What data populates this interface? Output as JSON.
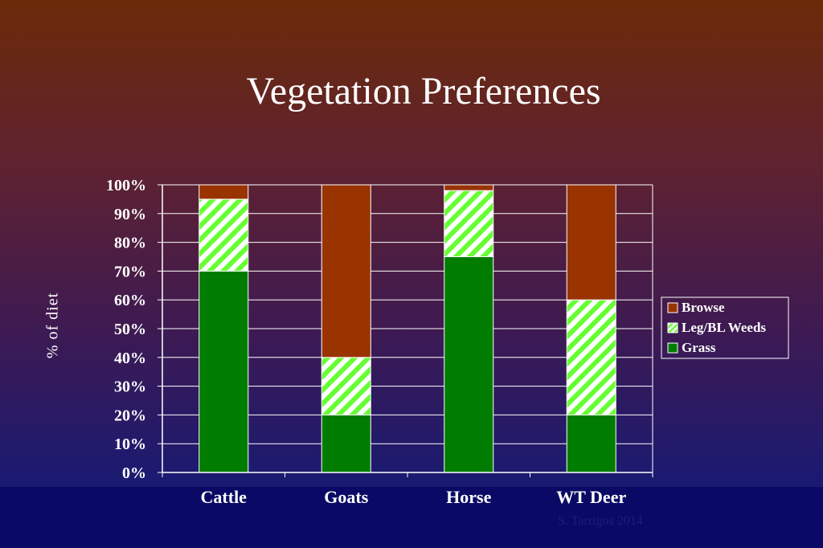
{
  "slide": {
    "title": "Vegetation Preferences",
    "footer": "S. Tarrigos 2014"
  },
  "colors": {
    "grass": "#007d00",
    "weeds_stripe": "#66ff33",
    "weeds_bg": "#ffffff",
    "browse": "#993300",
    "axis": "#ffffff"
  },
  "chart_data": {
    "type": "bar",
    "stacked": true,
    "percent": true,
    "categories": [
      "Cattle",
      "Goats",
      "Horse",
      "WT Deer"
    ],
    "series": [
      {
        "name": "Grass",
        "values": [
          70,
          20,
          75,
          20
        ],
        "color": "#007d00",
        "pattern": "solid"
      },
      {
        "name": "Leg/BL Weeds",
        "values": [
          25,
          20,
          23,
          40
        ],
        "color": "#66ff33",
        "pattern": "diagonal-stripes"
      },
      {
        "name": "Browse",
        "values": [
          5,
          60,
          2,
          40
        ],
        "color": "#993300",
        "pattern": "solid"
      }
    ],
    "ylabel": "% of diet",
    "ylim": [
      0,
      100
    ],
    "yticks": [
      "0%",
      "10%",
      "20%",
      "30%",
      "40%",
      "50%",
      "60%",
      "70%",
      "80%",
      "90%",
      "100%"
    ],
    "grid": true,
    "legend": {
      "position": "right",
      "entries": [
        "Browse",
        "Leg/BL Weeds",
        "Grass"
      ]
    }
  }
}
